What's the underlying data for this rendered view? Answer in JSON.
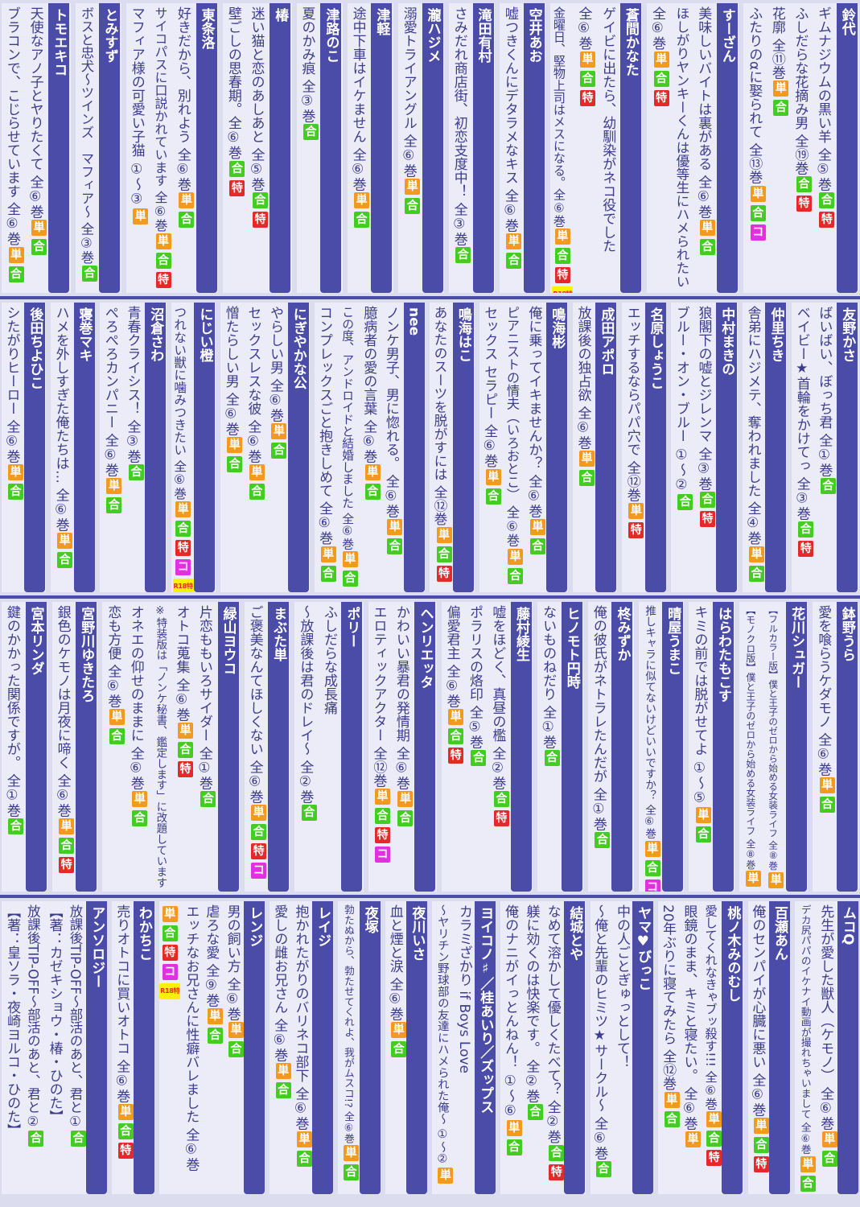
{
  "badge_colors": {
    "単": "#f39a1e",
    "合": "#44cc22",
    "特": "#e32a2a",
    "コ": "#e030e0",
    "R18特": "#fff200"
  },
  "bands": [
    {
      "groups": [
        {
          "author": "鈴代",
          "items": [
            {
              "text": "ギムナジウムの黒い羊 全⑤巻",
              "badges": [
                "合",
                "特"
              ]
            },
            {
              "text": "ふしだらな花摘み男 全⑲巻",
              "badges": [
                "合",
                "特"
              ]
            },
            {
              "text": "花廓 全⑪巻",
              "badges": [
                "単",
                "合"
              ]
            },
            {
              "text": "ふたりのαに娶られて 全⑬巻",
              "badges": [
                "単",
                "合",
                "コ"
              ]
            }
          ]
        },
        {
          "author": "すーざん",
          "items": [
            {
              "text": "美味しいバイトは裏がある 全⑥巻",
              "badges": [
                "単",
                "合"
              ]
            },
            {
              "text": "ほしがりヤンキーくんは優等生にハメられたい",
              "badges": []
            },
            {
              "text": "全⑥巻",
              "badges": [
                "単",
                "合",
                "特"
              ]
            }
          ]
        },
        {
          "author": "蒼間かなた",
          "items": [
            {
              "text": "ゲイビに出たら、幼馴染がネコ役でした",
              "badges": []
            },
            {
              "text": "全⑥巻",
              "badges": [
                "単",
                "合",
                "特"
              ]
            },
            {
              "text": "金曜日、堅物上司はメスになる。全⑥巻",
              "badges": [
                "単",
                "合",
                "特",
                "R18特"
              ]
            }
          ]
        },
        {
          "author": "空井あお",
          "items": [
            {
              "text": "嘘つきくんにデタラメなキス 全⑥巻",
              "badges": [
                "単",
                "合"
              ]
            }
          ]
        },
        {
          "author": "滝田有村",
          "items": [
            {
              "text": "さみだれ商店街、初恋支度中！ 全③巻",
              "badges": [
                "合"
              ]
            }
          ]
        },
        {
          "author": "瀧ハジメ",
          "items": [
            {
              "text": "溺愛トライアングル 全⑥巻",
              "badges": [
                "単",
                "合"
              ]
            }
          ]
        },
        {
          "author": "津軽",
          "items": [
            {
              "text": "途中下車はイケません 全⑥巻",
              "badges": [
                "単",
                "合"
              ]
            }
          ]
        },
        {
          "author": "津路のこ",
          "items": [
            {
              "text": "夏のかみ痕 全③巻",
              "badges": [
                "合"
              ]
            }
          ]
        },
        {
          "author": "椿",
          "items": [
            {
              "text": "迷い猫と恋のあしあと 全⑤巻",
              "badges": [
                "合",
                "特"
              ]
            },
            {
              "text": "壁ごしの思春期。全⑥巻",
              "badges": [
                "合",
                "特"
              ]
            }
          ]
        },
        {
          "author": "東条洛",
          "items": [
            {
              "text": "好きだから、別れよう 全⑥巻",
              "badges": [
                "単",
                "合"
              ]
            },
            {
              "text": "サイコパスに口説かれています 全⑥巻",
              "badges": [
                "単",
                "合",
                "特"
              ]
            },
            {
              "text": "マフィア様の可愛い子猫 ①～③",
              "badges": [
                "単"
              ]
            }
          ]
        },
        {
          "author": "とみすず",
          "items": [
            {
              "text": "ボスと忠犬～ツインズ　マフィア～ 全③巻",
              "badges": [
                "合"
              ]
            }
          ]
        },
        {
          "author": "トモエキコ",
          "items": [
            {
              "text": "天使なアノ子とヤりたくて 全⑥巻",
              "badges": [
                "単",
                "合"
              ]
            },
            {
              "text": "ブラコンで、こじらせています 全⑥巻",
              "badges": [
                "単",
                "合"
              ]
            }
          ]
        }
      ]
    },
    {
      "groups": [
        {
          "author": "友野かさ",
          "items": [
            {
              "text": "ばいばい、ぼっち君 全①巻",
              "badges": [
                "合"
              ]
            },
            {
              "text": "ベイビー★首輪をかけてっ 全③巻",
              "badges": [
                "合",
                "特"
              ]
            }
          ]
        },
        {
          "author": "仲里ちき",
          "items": [
            {
              "text": "舎弟にハジメテ、奪われました 全④巻",
              "badges": [
                "単",
                "合"
              ]
            }
          ]
        },
        {
          "author": "中村まきの",
          "items": [
            {
              "text": "狼閣下の嘘とジレンマ 全③巻",
              "badges": [
                "合",
                "特"
              ]
            },
            {
              "text": "ブルー・オン・ブルー ①～②",
              "badges": [
                "合"
              ]
            }
          ]
        },
        {
          "author": "名原しょうこ",
          "items": [
            {
              "text": "エッチするならパパ穴で 全⑫巻",
              "badges": [
                "単",
                "特"
              ]
            }
          ]
        },
        {
          "author": "成田アポロ",
          "items": [
            {
              "text": "放課後の独占欲 全⑥巻",
              "badges": [
                "単",
                "合"
              ]
            }
          ]
        },
        {
          "author": "鳴海彬",
          "items": [
            {
              "text": "俺に乗ってイキませんか？ 全⑥巻",
              "badges": [
                "単",
                "合"
              ]
            },
            {
              "text": "ピアニストの情夫（いろおとこ） 全⑥巻",
              "badges": [
                "単",
                "合"
              ]
            },
            {
              "text": "セックス セラピー 全⑥巻",
              "badges": [
                "単",
                "合"
              ]
            }
          ]
        },
        {
          "author": "鳴海はこ",
          "items": [
            {
              "text": "あなたのスーツを脱がすには 全⑫巻",
              "badges": [
                "単",
                "合",
                "特"
              ]
            }
          ]
        },
        {
          "author": "nee",
          "items": [
            {
              "text": "ノンケ男子、男に惚れる。 全⑥巻",
              "badges": [
                "単",
                "合"
              ]
            },
            {
              "text": "臆病者の愛の言葉 全⑥巻",
              "badges": [
                "単",
                "合"
              ]
            },
            {
              "text": "この度、アンドロイドと結婚しました 全⑥巻",
              "badges": [
                "単",
                "合"
              ]
            },
            {
              "text": "コンプレックスごと抱きしめて 全⑥巻",
              "badges": [
                "単",
                "合"
              ]
            }
          ]
        },
        {
          "author": "にぎやかな公",
          "items": [
            {
              "text": "やらしい男 全⑥巻",
              "badges": [
                "単",
                "合"
              ]
            },
            {
              "text": "セックスレスな彼 全⑥巻",
              "badges": [
                "単",
                "合"
              ]
            },
            {
              "text": "憎たらしい男 全⑥巻",
              "badges": [
                "単",
                "合"
              ]
            }
          ]
        },
        {
          "author": "にじい橙",
          "items": [
            {
              "text": "つれない獣に噛みつきたい 全⑥巻",
              "badges": [
                "単",
                "合",
                "特",
                "コ",
                "R18特"
              ]
            }
          ]
        },
        {
          "author": "沼倉さわ",
          "items": [
            {
              "text": "青春クライシス！ 全③巻",
              "badges": [
                "合"
              ]
            },
            {
              "text": "ぺろぺろカンパニー 全⑥巻",
              "badges": [
                "単",
                "合"
              ]
            }
          ]
        },
        {
          "author": "寝巻マキ",
          "items": [
            {
              "text": "ハメを外しすぎた俺たちは… 全⑥巻",
              "badges": [
                "単",
                "合"
              ]
            }
          ]
        },
        {
          "author": "後田ちよひこ",
          "items": [
            {
              "text": "シたがりヒーロー 全⑥巻",
              "badges": [
                "単",
                "合"
              ]
            }
          ]
        }
      ]
    },
    {
      "groups": [
        {
          "author": "鉢野うら",
          "items": [
            {
              "text": "愛を喰らうケダモノ 全⑥巻",
              "badges": [
                "単",
                "合"
              ]
            }
          ]
        },
        {
          "author": "花川シュガー",
          "items": [
            {
              "text": "【フルカラー版】僕と王子のゼロから始める女装ライフ 全⑧巻",
              "badges": [
                "単"
              ]
            },
            {
              "text": "【モノクロ版】僕と王子のゼロから始める女装ライフ 全⑧巻",
              "badges": [
                "単"
              ]
            }
          ]
        },
        {
          "author": "はらわたもこす",
          "items": [
            {
              "text": "キミの前では脱がせてよ ①～⑤",
              "badges": [
                "単",
                "合"
              ]
            }
          ]
        },
        {
          "author": "晴屋うまこ",
          "items": [
            {
              "text": "推しキャラに似てないけどいいですか？ 全⑥巻",
              "badges": [
                "単",
                "合",
                "コ"
              ]
            }
          ]
        },
        {
          "author": "柊みずか",
          "items": [
            {
              "text": "俺の彼氏がネトラレたんだが 全①巻",
              "badges": [
                "合"
              ]
            }
          ]
        },
        {
          "author": "ヒノモト円時",
          "items": [
            {
              "text": "ないものねだり 全①巻",
              "badges": [
                "合"
              ]
            }
          ]
        },
        {
          "author": "藤村綾生",
          "items": [
            {
              "text": "嘘をほどく、真昼の檻 全②巻",
              "badges": [
                "合",
                "特"
              ]
            },
            {
              "text": "ポラリスの烙印 全⑤巻",
              "badges": [
                "合"
              ]
            },
            {
              "text": "偏愛君主 全⑥巻",
              "badges": [
                "単",
                "合",
                "特"
              ]
            }
          ]
        },
        {
          "author": "ヘンリエッタ",
          "items": [
            {
              "text": "かわいい暴君の発情期 全⑥巻",
              "badges": [
                "単",
                "合"
              ]
            },
            {
              "text": "エロティックアクター 全⑫巻",
              "badges": [
                "単",
                "合",
                "特",
                "コ"
              ]
            }
          ]
        },
        {
          "author": "ポリー",
          "items": [
            {
              "text": "ふしだらな成長痛",
              "badges": []
            },
            {
              "text": "～放課後は君のドレイ～ 全②巻",
              "badges": [
                "合"
              ]
            }
          ]
        },
        {
          "author": "まぶた単",
          "items": [
            {
              "text": "ご褒美なんてほしくない 全⑥巻",
              "badges": [
                "単",
                "合",
                "特",
                "コ"
              ]
            }
          ]
        },
        {
          "author": "緑山ヨウコ",
          "items": [
            {
              "text": "片恋ももいろサイダー 全①巻",
              "badges": [
                "合"
              ]
            },
            {
              "text": "オトコ蒐集 全⑥巻",
              "badges": [
                "単",
                "合",
                "特"
              ]
            },
            {
              "text": "※特装版は「ノンケ秘書、鑑定します」に改題しています",
              "badges": []
            },
            {
              "text": "オネエの仰せのままに 全⑥巻",
              "badges": [
                "単",
                "合"
              ]
            },
            {
              "text": "恋も方便 全⑥巻",
              "badges": [
                "単",
                "合"
              ]
            }
          ]
        },
        {
          "author": "宮野川ゆきたろ",
          "items": [
            {
              "text": "銀色のケモノは月夜に啼く 全⑥巻",
              "badges": [
                "単",
                "合",
                "特"
              ]
            }
          ]
        },
        {
          "author": "宮本リンダ",
          "items": [
            {
              "text": "鍵のかかった関係ですが。 全①巻",
              "badges": [
                "合"
              ]
            }
          ]
        }
      ]
    },
    {
      "groups": [
        {
          "author": "ムコQ",
          "items": [
            {
              "text": "先生が愛した獣人（ケモノ） 全⑥巻",
              "badges": [
                "単",
                "合"
              ]
            },
            {
              "text": "デカ尻パパのイケナイ動画が撮れちゃいまして 全⑥巻",
              "badges": [
                "単",
                "合"
              ]
            }
          ]
        },
        {
          "author": "百瀬あん",
          "items": [
            {
              "text": "俺のセンパイが心臓に悪い 全⑥巻",
              "badges": [
                "単",
                "合",
                "特"
              ]
            }
          ]
        },
        {
          "author": "桃ノ木みのむし",
          "items": [
            {
              "text": "愛してくれなきゃブッ殺す!!! 全⑥巻",
              "badges": [
                "単",
                "合",
                "特"
              ]
            },
            {
              "text": "眼鏡のまま、キミと寝たい。 全⑥巻",
              "badges": [
                "単"
              ]
            },
            {
              "text": "20年ぶりに寝てみたら 全⑫巻",
              "badges": [
                "単",
                "合"
              ]
            }
          ]
        },
        {
          "author": "ヤマ♥びっこ",
          "items": [
            {
              "text": "中の人ごとぎゅっとして！",
              "badges": []
            },
            {
              "text": "～俺と先輩のヒミツ★サークル～ 全⑥巻",
              "badges": [
                "合"
              ]
            }
          ]
        },
        {
          "author": "結城とや",
          "items": [
            {
              "text": "なめて溶かして優しくたべて？ 全②巻",
              "badges": [
                "合",
                "特"
              ]
            },
            {
              "text": "躾に効くのは快楽です。 全②巻",
              "badges": [
                "合"
              ]
            },
            {
              "text": "俺のナニがイっとんねん！ ①～⑥",
              "badges": [
                "単",
                "合"
              ]
            }
          ]
        },
        {
          "author": "ヨイコノ♯／桂あいり／ズップス",
          "items": [
            {
              "text": "カラミざかり if Boys Love",
              "badges": []
            },
            {
              "text": "～ヤリチン野球部の友達にハメられた俺～ ①～②",
              "badges": [
                "単"
              ]
            }
          ]
        },
        {
          "author": "夜川いさ",
          "items": [
            {
              "text": "血と煙と涙 全⑥巻",
              "badges": [
                "単",
                "合"
              ]
            }
          ]
        },
        {
          "author": "夜塚",
          "items": [
            {
              "text": "勃たぬから、勃たせてくれよ、我がムスコ!? 全⑥巻",
              "badges": [
                "単",
                "合"
              ]
            }
          ]
        },
        {
          "author": "レイジ",
          "items": [
            {
              "text": "抱かれたがりのバリネコ部下 全⑥巻",
              "badges": [
                "単",
                "合"
              ]
            },
            {
              "text": "愛しの雌お兄さん 全⑥巻",
              "badges": [
                "単",
                "合"
              ]
            }
          ]
        },
        {
          "author": "レンジ",
          "items": [
            {
              "text": "男の飼い方 全⑥巻",
              "badges": [
                "単",
                "合"
              ]
            },
            {
              "text": "虐ろな愛 全⑨巻",
              "badges": [
                "単",
                "合"
              ]
            },
            {
              "text": "エッチなお兄さんに性癖バレました 全⑥巻",
              "badges": []
            },
            {
              "text": "",
              "badges": [
                "単",
                "合",
                "特",
                "コ",
                "R18特"
              ]
            }
          ]
        },
        {
          "author": "わかちこ",
          "items": [
            {
              "text": "売りオトコに買いオトコ 全⑥巻",
              "badges": [
                "単",
                "合",
                "特"
              ]
            }
          ]
        },
        {
          "author": "アンソロジー",
          "items": [
            {
              "text": "放課後TIP-OFF～部活のあと、君と①",
              "badges": [
                "合"
              ]
            },
            {
              "text": "【著：カゼキショウ・椿・ひのた】",
              "badges": []
            },
            {
              "text": "放課後TIP-OFF～部活のあと、君と②",
              "badges": [
                "合"
              ]
            },
            {
              "text": "【著：皇ソラ・夜崎ヨルコ・ひのた】",
              "badges": []
            }
          ]
        }
      ]
    }
  ]
}
